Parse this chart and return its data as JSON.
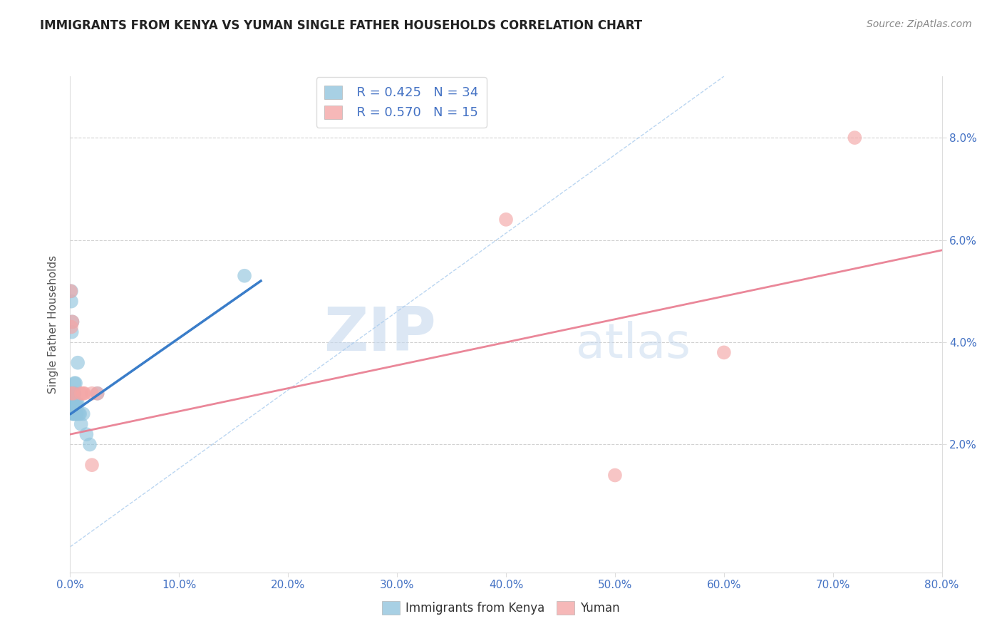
{
  "title": "IMMIGRANTS FROM KENYA VS YUMAN SINGLE FATHER HOUSEHOLDS CORRELATION CHART",
  "source": "Source: ZipAtlas.com",
  "ylabel": "Single Father Households",
  "legend_blue_r": "R = 0.425",
  "legend_blue_n": "N = 34",
  "legend_pink_r": "R = 0.570",
  "legend_pink_n": "N = 15",
  "legend_blue_label": "Immigrants from Kenya",
  "legend_pink_label": "Yuman",
  "xlim": [
    0.0,
    0.8
  ],
  "ylim": [
    -0.005,
    0.092
  ],
  "xticks": [
    0.0,
    0.1,
    0.2,
    0.3,
    0.4,
    0.5,
    0.6,
    0.7,
    0.8
  ],
  "yticks": [
    0.02,
    0.04,
    0.06,
    0.08
  ],
  "blue_color": "#92c5de",
  "pink_color": "#f4a6a6",
  "blue_line_color": "#3a7dc9",
  "pink_line_color": "#e87a8e",
  "watermark_zip": "ZIP",
  "watermark_atlas": "atlas",
  "blue_scatter_x": [
    0.0005,
    0.001,
    0.001,
    0.001,
    0.0015,
    0.0015,
    0.002,
    0.002,
    0.002,
    0.0025,
    0.0025,
    0.003,
    0.003,
    0.003,
    0.003,
    0.004,
    0.004,
    0.004,
    0.004,
    0.005,
    0.005,
    0.005,
    0.006,
    0.006,
    0.007,
    0.007,
    0.008,
    0.009,
    0.01,
    0.012,
    0.015,
    0.018,
    0.025,
    0.16
  ],
  "blue_scatter_y": [
    0.028,
    0.05,
    0.048,
    0.03,
    0.028,
    0.042,
    0.044,
    0.03,
    0.028,
    0.028,
    0.026,
    0.03,
    0.03,
    0.028,
    0.026,
    0.032,
    0.03,
    0.028,
    0.026,
    0.032,
    0.028,
    0.026,
    0.028,
    0.026,
    0.036,
    0.028,
    0.026,
    0.026,
    0.024,
    0.026,
    0.022,
    0.02,
    0.03,
    0.053
  ],
  "pink_scatter_x": [
    0.0005,
    0.001,
    0.001,
    0.002,
    0.003,
    0.01,
    0.012,
    0.013,
    0.02,
    0.02,
    0.025,
    0.4,
    0.5,
    0.6,
    0.72
  ],
  "pink_scatter_y": [
    0.05,
    0.043,
    0.03,
    0.044,
    0.03,
    0.03,
    0.03,
    0.03,
    0.016,
    0.03,
    0.03,
    0.064,
    0.014,
    0.038,
    0.08
  ],
  "blue_trend_x": [
    0.0005,
    0.175
  ],
  "blue_trend_y": [
    0.026,
    0.052
  ],
  "pink_trend_x": [
    0.0,
    0.8
  ],
  "pink_trend_y": [
    0.022,
    0.058
  ],
  "diag_line_x": [
    0.0,
    0.6
  ],
  "diag_line_y": [
    0.0,
    0.092
  ]
}
